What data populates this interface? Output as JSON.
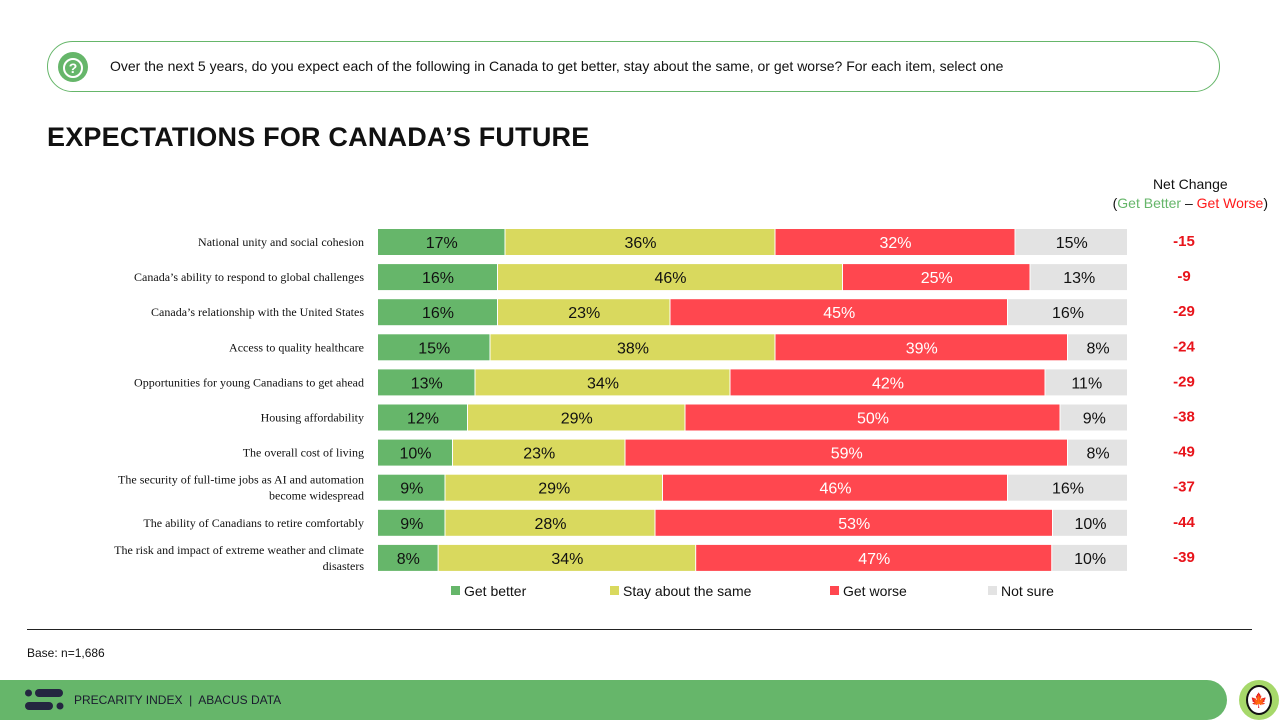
{
  "question": "Over the next 5 years, do you expect each of the following in Canada to get better, stay about the same, or get worse? For each item, select one",
  "title": "EXPECTATIONS FOR CANADA’S FUTURE",
  "net_header": {
    "line1": "Net Change",
    "open": "(",
    "better": "Get Better",
    "dash": " – ",
    "worse": "Get Worse",
    "close": ")"
  },
  "base": "Base: n=1,686",
  "footer": "PRECARITY INDEX  |  ABACUS DATA",
  "colors": {
    "better": "#66b66a",
    "same": "#d9d95e",
    "worse": "#ff474f",
    "notsure": "#e3e3e3",
    "net": "#e8141b"
  },
  "chart_data": {
    "type": "bar",
    "orientation": "horizontal",
    "stacked": true,
    "xlim": [
      0,
      100
    ],
    "legend": "bottom",
    "categories": [
      "National unity and social cohesion",
      "Canada’s ability to respond to global challenges",
      "Canada’s relationship with the United States",
      "Access to quality healthcare",
      "Opportunities for young Canadians to get ahead",
      "Housing affordability",
      "The overall cost of living",
      "The security of full-time jobs as AI and automation become widespread",
      "The ability of Canadians to retire comfortably",
      "The risk and impact of extreme weather and climate disasters"
    ],
    "series": [
      {
        "name": "Get better",
        "values": [
          17,
          16,
          16,
          15,
          13,
          12,
          10,
          9,
          9,
          8
        ]
      },
      {
        "name": "Stay about the same",
        "values": [
          36,
          46,
          23,
          38,
          34,
          29,
          23,
          29,
          28,
          34
        ]
      },
      {
        "name": "Get worse",
        "values": [
          32,
          25,
          45,
          39,
          42,
          50,
          59,
          46,
          53,
          47
        ]
      },
      {
        "name": "Not sure",
        "values": [
          15,
          13,
          16,
          8,
          11,
          9,
          8,
          16,
          10,
          10
        ]
      }
    ],
    "net_change": [
      -15,
      -9,
      -29,
      -24,
      -29,
      -38,
      -49,
      -37,
      -44,
      -39
    ]
  }
}
